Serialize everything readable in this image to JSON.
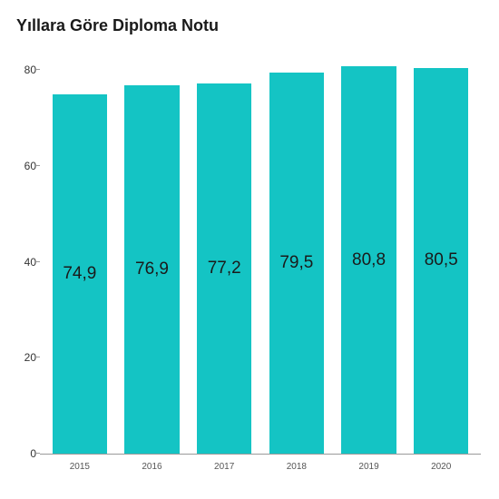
{
  "chart": {
    "type": "bar",
    "title": "Yıllara Göre Diploma Notu",
    "title_fontsize": 18,
    "title_weight": 700,
    "background_color": "#ffffff",
    "bar_color": "#14c4c4",
    "text_color": "#1a1a1a",
    "axis_color": "#999999",
    "x_label_color": "#555555",
    "x_label_fontsize": 10,
    "bar_label_fontsize": 19,
    "y_tick_fontsize": 12,
    "ylim": [
      0,
      85
    ],
    "yticks": [
      0,
      20,
      40,
      60,
      80
    ],
    "categories": [
      "2015",
      "2016",
      "2017",
      "2018",
      "2019",
      "2020"
    ],
    "values": [
      74.9,
      76.9,
      77.2,
      79.5,
      80.8,
      80.5
    ],
    "value_labels": [
      "74,9",
      "76,9",
      "77,2",
      "79,5",
      "80,8",
      "80,5"
    ],
    "bar_gap_ratio": 0.04
  }
}
